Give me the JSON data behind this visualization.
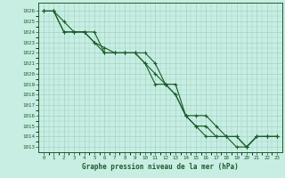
{
  "title": "Graphe pression niveau de la mer (hPa)",
  "bg_color": "#c8eee4",
  "grid_color": "#a0d4c4",
  "line_color": "#1a5c2a",
  "xlim": [
    -0.5,
    23.5
  ],
  "ylim": [
    1012.5,
    1026.8
  ],
  "yticks": [
    1013,
    1014,
    1015,
    1016,
    1017,
    1018,
    1019,
    1020,
    1021,
    1022,
    1023,
    1024,
    1025,
    1026
  ],
  "xticks": [
    0,
    1,
    2,
    3,
    4,
    5,
    6,
    7,
    8,
    9,
    10,
    11,
    12,
    13,
    14,
    15,
    16,
    17,
    18,
    19,
    20,
    21,
    22,
    23
  ],
  "series1": {
    "x": [
      0,
      1,
      2,
      3,
      4,
      5,
      6,
      7,
      8,
      9,
      10,
      11,
      12,
      13,
      14,
      15,
      16,
      17,
      18,
      19,
      20,
      21,
      22,
      23
    ],
    "y": [
      1026,
      1026,
      1025,
      1024,
      1024,
      1024,
      1022,
      1022,
      1022,
      1022,
      1022,
      1021,
      1019,
      1019,
      1016,
      1016,
      1016,
      1015,
      1014,
      1014,
      1013,
      1014,
      1014,
      1014
    ]
  },
  "series2": {
    "x": [
      0,
      1,
      2,
      3,
      4,
      5,
      6,
      7,
      8,
      9,
      10,
      11,
      12,
      13,
      14,
      15,
      16,
      17,
      18,
      19,
      20,
      21,
      22,
      23
    ],
    "y": [
      1026,
      1026,
      1024,
      1024,
      1024,
      1023,
      1022.5,
      1022,
      1022,
      1022,
      1021,
      1020,
      1019,
      1018,
      1016,
      1015,
      1015,
      1014,
      1014,
      1014,
      1013,
      1014,
      1014,
      1014
    ]
  },
  "series3": {
    "x": [
      0,
      1,
      2,
      3,
      4,
      5,
      6,
      7,
      8,
      9,
      10,
      11,
      12,
      13,
      14,
      15,
      16,
      17,
      18,
      19,
      20,
      21,
      22,
      23
    ],
    "y": [
      1026,
      1026,
      1024,
      1024,
      1024,
      1023,
      1022,
      1022,
      1022,
      1022,
      1021,
      1019,
      1019,
      1018,
      1016,
      1015,
      1014,
      1014,
      1014,
      1013,
      1013,
      1014,
      1014,
      1014
    ]
  }
}
